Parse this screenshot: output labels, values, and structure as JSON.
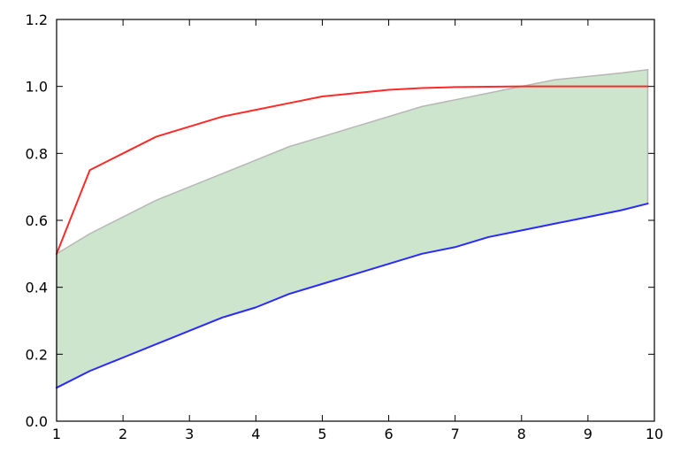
{
  "chart_data": {
    "type": "line",
    "title": "",
    "xlabel": "",
    "ylabel": "",
    "xlim": [
      1,
      10
    ],
    "ylim": [
      0.0,
      1.2
    ],
    "grid": false,
    "x_ticks": [
      1,
      2,
      3,
      4,
      5,
      6,
      7,
      8,
      9,
      10
    ],
    "x_tick_labels": [
      "1",
      "2",
      "3",
      "4",
      "5",
      "6",
      "7",
      "8",
      "9",
      "10"
    ],
    "y_ticks": [
      0.0,
      0.2,
      0.4,
      0.6,
      0.8,
      1.0,
      1.2
    ],
    "y_tick_labels": [
      "0.0",
      "0.2",
      "0.4",
      "0.6",
      "0.8",
      "1.0",
      "1.2"
    ],
    "x": [
      1,
      1.5,
      2,
      2.5,
      3,
      3.5,
      4,
      4.5,
      5,
      5.5,
      6,
      6.5,
      7,
      7.5,
      8,
      8.5,
      9,
      9.5,
      9.9
    ],
    "series": [
      {
        "color": "#ff2a2a",
        "values": [
          0.5,
          0.75,
          0.8,
          0.85,
          0.88,
          0.91,
          0.93,
          0.95,
          0.97,
          0.98,
          0.99,
          0.995,
          0.998,
          0.999,
          1.0,
          1.0,
          1.0,
          1.0,
          1.0
        ]
      },
      {
        "color": "#2a2aff",
        "values": [
          0.1,
          0.15,
          0.19,
          0.23,
          0.27,
          0.31,
          0.34,
          0.38,
          0.41,
          0.44,
          0.47,
          0.5,
          0.52,
          0.55,
          0.57,
          0.59,
          0.61,
          0.63,
          0.65
        ]
      }
    ],
    "fill_between": {
      "color": "#cde4cd",
      "edge_color": "#b7b7b7",
      "lower": [
        0.1,
        0.15,
        0.19,
        0.23,
        0.27,
        0.31,
        0.34,
        0.38,
        0.41,
        0.44,
        0.47,
        0.5,
        0.52,
        0.55,
        0.57,
        0.59,
        0.61,
        0.63,
        0.65
      ],
      "upper": [
        0.5,
        0.56,
        0.61,
        0.66,
        0.7,
        0.74,
        0.78,
        0.82,
        0.85,
        0.88,
        0.91,
        0.94,
        0.96,
        0.98,
        1.0,
        1.02,
        1.03,
        1.04,
        1.05
      ]
    }
  }
}
